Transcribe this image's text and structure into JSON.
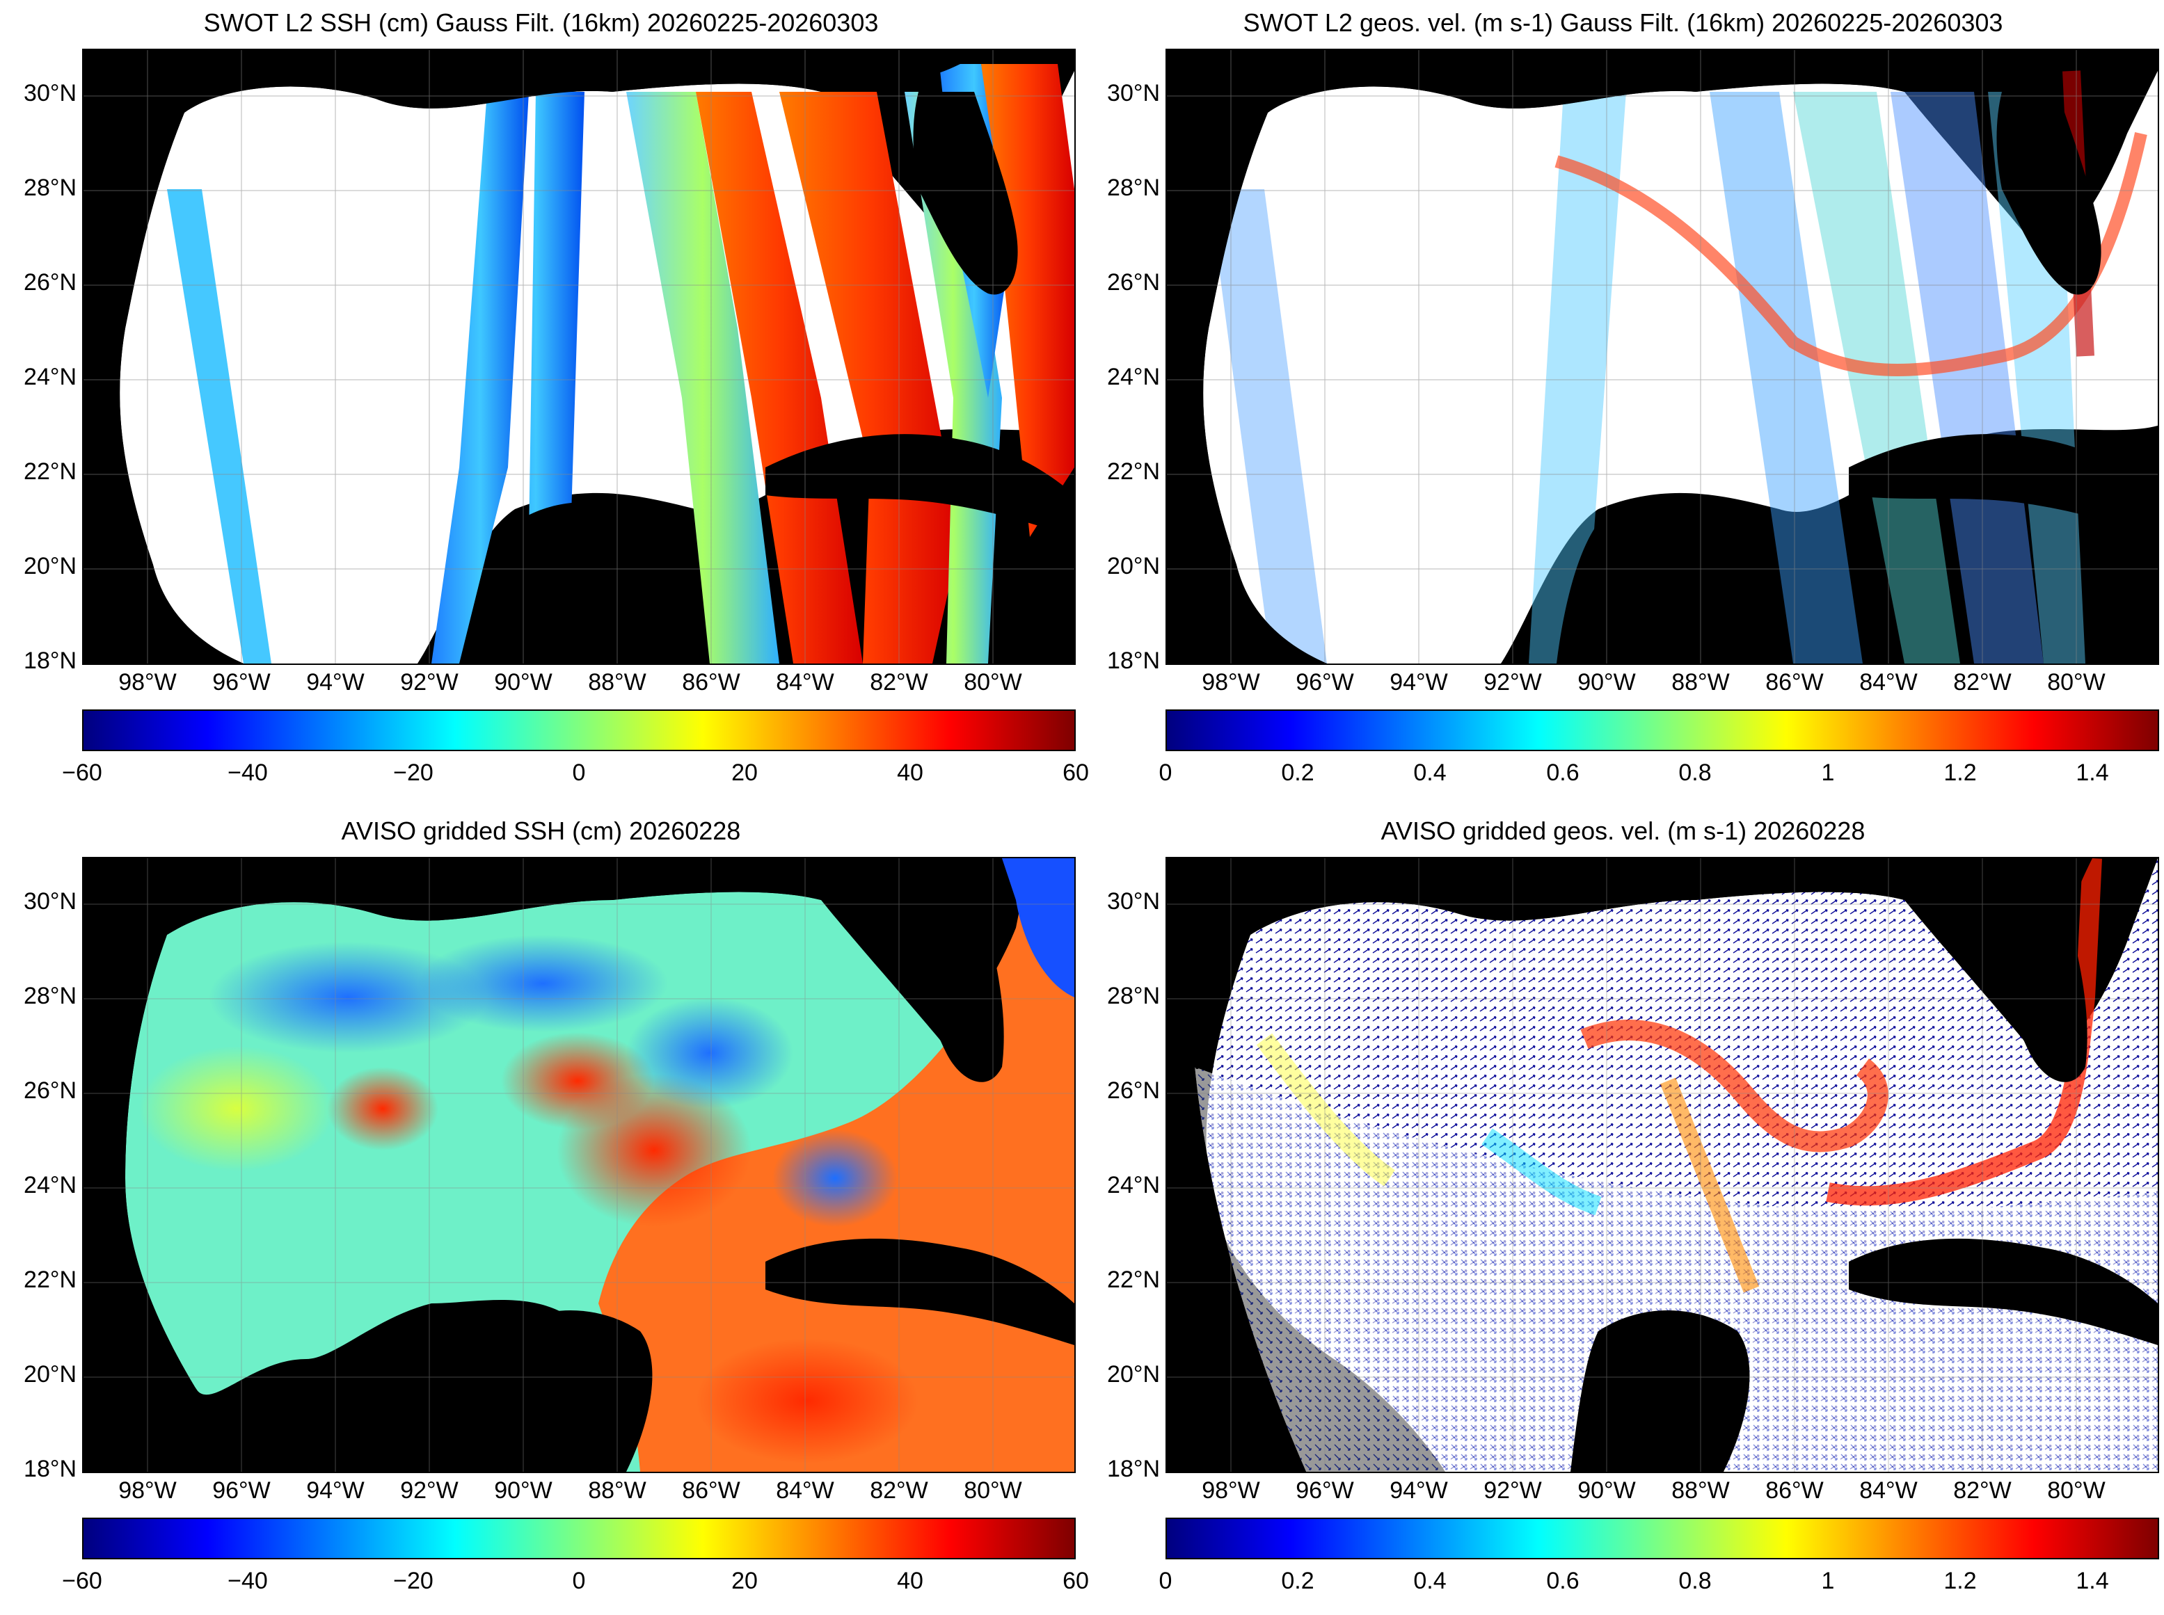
{
  "panels": {
    "top_left": {
      "title": "SWOT L2 SSH (cm) Gauss Filt. (16km) 20260225-20260303",
      "colorbar_ticks": [
        "−60",
        "−40",
        "−20",
        "0",
        "20",
        "40",
        "60"
      ]
    },
    "top_right": {
      "title": "SWOT L2 geos. vel. (m s-1) Gauss Filt. (16km) 20260225-20260303",
      "colorbar_ticks": [
        "0",
        "0.2",
        "0.4",
        "0.6",
        "0.8",
        "1",
        "1.2",
        "1.4"
      ]
    },
    "bottom_left": {
      "title": "AVISO gridded SSH (cm) 20260228",
      "colorbar_ticks": [
        "−60",
        "−40",
        "−20",
        "0",
        "20",
        "40",
        "60"
      ]
    },
    "bottom_right": {
      "title": "AVISO gridded geos. vel. (m s-1)  20260228",
      "colorbar_ticks": [
        "0",
        "0.2",
        "0.4",
        "0.6",
        "0.8",
        "1",
        "1.2",
        "1.4"
      ]
    }
  },
  "axes": {
    "lat_labels": [
      "30°N",
      "28°N",
      "26°N",
      "24°N",
      "22°N",
      "20°N",
      "18°N"
    ],
    "lon_labels": [
      "98°W",
      "96°W",
      "94°W",
      "92°W",
      "90°W",
      "88°W",
      "86°W",
      "84°W",
      "82°W",
      "80°W"
    ]
  },
  "colors": {
    "land": "#000000",
    "ocean_no_data": "#ffffff",
    "colormap": "jet"
  }
}
